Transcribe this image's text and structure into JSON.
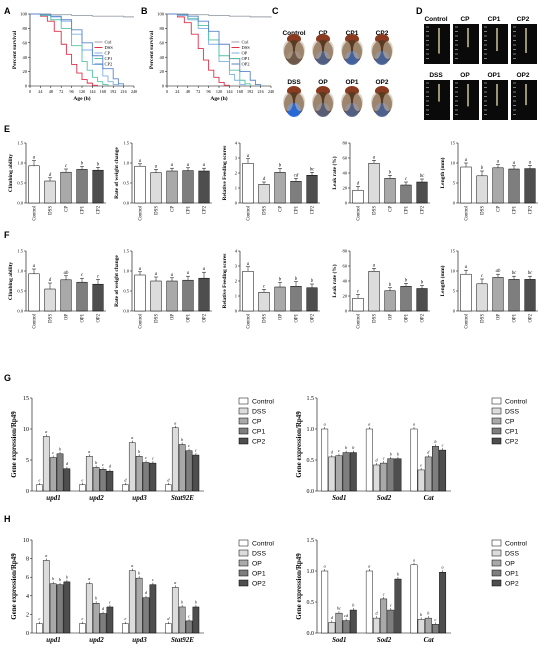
{
  "panel_letters": [
    "A",
    "B",
    "C",
    "D",
    "E",
    "F",
    "G",
    "H"
  ],
  "colors": {
    "ctrl": "#9aa0aa",
    "dss": "#e0304a",
    "s1": "#7fb1e6",
    "s2": "#53c2a3",
    "s3": "#5a86c7",
    "bar_ctrl": "#ffffff",
    "bar_dss": "#dcdcdc",
    "bar_s1": "#a9a9a9",
    "bar_s2": "#7e7e7e",
    "bar_s3": "#4e4e4e"
  },
  "chart_data": [
    {
      "id": "A",
      "type": "line",
      "ylabel": "Percent survival",
      "xlabel": "Age (h)",
      "xlim": [
        0,
        240
      ],
      "ylim": [
        0,
        100
      ],
      "xticks": [
        "0",
        "24",
        "48",
        "72",
        "96",
        "120",
        "144",
        "168",
        "192",
        "216",
        "240"
      ],
      "yticks": [
        "0",
        "20",
        "40",
        "60",
        "80",
        "100"
      ],
      "legend": [
        "Ctrl",
        "DSS",
        "CP",
        "CP1",
        "CP2"
      ],
      "series": [
        {
          "name": "Ctrl",
          "x": [
            0,
            24,
            48,
            72,
            96,
            120,
            144,
            168,
            192,
            216,
            240
          ],
          "y": [
            100,
            100,
            99,
            99,
            98,
            98,
            97,
            97,
            97,
            96,
            96
          ]
        },
        {
          "name": "DSS",
          "x": [
            0,
            24,
            40,
            56,
            72,
            84,
            96,
            108,
            120,
            132,
            144,
            156
          ],
          "y": [
            100,
            97,
            90,
            76,
            58,
            44,
            30,
            18,
            9,
            4,
            1,
            0
          ]
        },
        {
          "name": "CP",
          "x": [
            0,
            24,
            48,
            72,
            96,
            120,
            144,
            168,
            180,
            192,
            204
          ],
          "y": [
            100,
            99,
            96,
            90,
            72,
            50,
            30,
            14,
            6,
            2,
            0
          ]
        },
        {
          "name": "CP1",
          "x": [
            0,
            24,
            48,
            72,
            96,
            120,
            132,
            144,
            156,
            168,
            180
          ],
          "y": [
            100,
            98,
            92,
            80,
            56,
            34,
            22,
            12,
            6,
            2,
            0
          ]
        },
        {
          "name": "CP2",
          "x": [
            0,
            24,
            48,
            72,
            96,
            120,
            144,
            168,
            192,
            204,
            216
          ],
          "y": [
            100,
            99,
            97,
            92,
            78,
            60,
            42,
            24,
            10,
            3,
            0
          ]
        }
      ]
    },
    {
      "id": "B",
      "type": "line",
      "ylabel": "Percent survival",
      "xlabel": "Age (h)",
      "xlim": [
        0,
        240
      ],
      "ylim": [
        0,
        100
      ],
      "xticks": [
        "0",
        "24",
        "48",
        "72",
        "96",
        "120",
        "144",
        "168",
        "192",
        "216",
        "240"
      ],
      "yticks": [
        "0",
        "20",
        "40",
        "60",
        "80",
        "100"
      ],
      "legend": [
        "Ctrl",
        "DSS",
        "OP",
        "OP1",
        "OP2"
      ],
      "series": [
        {
          "name": "Ctrl",
          "x": [
            0,
            24,
            48,
            72,
            96,
            120,
            144,
            168,
            192,
            216,
            240
          ],
          "y": [
            100,
            100,
            99,
            99,
            98,
            98,
            97,
            97,
            96,
            96,
            95
          ]
        },
        {
          "name": "DSS",
          "x": [
            0,
            24,
            40,
            56,
            72,
            84,
            96,
            108,
            120,
            132,
            144
          ],
          "y": [
            100,
            96,
            88,
            72,
            52,
            36,
            22,
            12,
            5,
            1,
            0
          ]
        },
        {
          "name": "OP",
          "x": [
            0,
            24,
            48,
            72,
            96,
            120,
            144,
            156,
            168,
            180
          ],
          "y": [
            100,
            98,
            92,
            80,
            58,
            34,
            16,
            8,
            2,
            0
          ]
        },
        {
          "name": "OP1",
          "x": [
            0,
            24,
            48,
            72,
            96,
            120,
            144,
            168,
            180,
            192
          ],
          "y": [
            100,
            99,
            94,
            84,
            64,
            42,
            22,
            8,
            3,
            0
          ]
        },
        {
          "name": "OP2",
          "x": [
            0,
            24,
            48,
            72,
            96,
            120,
            144,
            168,
            192,
            204,
            216
          ],
          "y": [
            100,
            99,
            97,
            90,
            76,
            58,
            38,
            20,
            8,
            2,
            0
          ]
        }
      ]
    },
    {
      "id": "E1",
      "type": "bar",
      "ylabel": "Climbing ability",
      "categories": [
        "Control",
        "DSS",
        "CP",
        "CP1",
        "CP2"
      ],
      "values": [
        0.93,
        0.55,
        0.77,
        0.84,
        0.82
      ],
      "errors": [
        0.13,
        0.08,
        0.08,
        0.07,
        0.07
      ],
      "letters": [
        "a",
        "d",
        "c",
        "b",
        "b"
      ],
      "ylim": [
        0,
        1.5
      ],
      "yticks": [
        "0.0",
        "0.5",
        "1.0",
        "1.5"
      ]
    },
    {
      "id": "E2",
      "type": "bar",
      "ylabel": "Rate of weight change",
      "categories": [
        "Control",
        "DSS",
        "CP",
        "CP1",
        "CP2"
      ],
      "values": [
        0.92,
        0.76,
        0.8,
        0.81,
        0.8
      ],
      "errors": [
        0.06,
        0.08,
        0.07,
        0.07,
        0.07
      ],
      "letters": [
        "a",
        "a",
        "a",
        "a",
        "a"
      ],
      "ylim": [
        0,
        1.5
      ],
      "yticks": [
        "0.0",
        "0.5",
        "1.0",
        "1.5"
      ]
    },
    {
      "id": "E3",
      "type": "bar",
      "ylabel": "Relative Feeding scores",
      "categories": [
        "Control",
        "DSS",
        "CP",
        "CP1",
        "CP2"
      ],
      "values": [
        2.65,
        1.25,
        2.05,
        1.45,
        1.85
      ],
      "errors": [
        0.3,
        0.15,
        0.25,
        0.2,
        0.2
      ],
      "letters": [
        "a",
        "d",
        "b",
        "cd",
        "bc"
      ],
      "ylim": [
        0,
        4
      ],
      "yticks": [
        "0",
        "1",
        "2",
        "3",
        "4"
      ]
    },
    {
      "id": "E4",
      "type": "bar",
      "ylabel": "Leak rate (%)",
      "categories": [
        "Control",
        "DSS",
        "CP",
        "CP1",
        "CP2"
      ],
      "values": [
        17,
        53,
        33,
        24,
        28
      ],
      "errors": [
        5,
        4,
        4,
        4,
        4
      ],
      "letters": [
        "d",
        "a",
        "b",
        "c",
        "bc"
      ],
      "ylim": [
        0,
        80
      ],
      "yticks": [
        "0",
        "20",
        "40",
        "60",
        "80"
      ]
    },
    {
      "id": "E5",
      "type": "bar",
      "ylabel": "Length (mm)",
      "categories": [
        "Control",
        "DSS",
        "CP",
        "CP1",
        "CP2"
      ],
      "values": [
        9.0,
        6.8,
        8.8,
        8.5,
        8.6
      ],
      "errors": [
        1.0,
        1.2,
        0.8,
        0.8,
        0.8
      ],
      "letters": [
        "a",
        "b",
        "a",
        "a",
        "a"
      ],
      "ylim": [
        0,
        15
      ],
      "yticks": [
        "0",
        "5",
        "10",
        "15"
      ]
    },
    {
      "id": "F1",
      "type": "bar",
      "ylabel": "Climbing ability",
      "categories": [
        "Control",
        "DSS",
        "OP",
        "OP1",
        "OP2"
      ],
      "values": [
        0.93,
        0.55,
        0.78,
        0.72,
        0.67
      ],
      "errors": [
        0.12,
        0.15,
        0.1,
        0.1,
        0.12
      ],
      "letters": [
        "a",
        "d",
        "ab",
        "c",
        "c"
      ],
      "ylim": [
        0,
        1.5
      ],
      "yticks": [
        "0.0",
        "0.5",
        "1.0",
        "1.5"
      ]
    },
    {
      "id": "F2",
      "type": "bar",
      "ylabel": "Rate of weight change",
      "categories": [
        "Control",
        "DSS",
        "OP",
        "OP1",
        "OP2"
      ],
      "values": [
        0.9,
        0.75,
        0.75,
        0.77,
        0.82
      ],
      "errors": [
        0.08,
        0.1,
        0.08,
        0.1,
        0.15
      ],
      "letters": [
        "a",
        "a",
        "a",
        "a",
        "a"
      ],
      "ylim": [
        0,
        1.5
      ],
      "yticks": [
        "0.0",
        "0.5",
        "1.0",
        "1.5"
      ]
    },
    {
      "id": "F3",
      "type": "bar",
      "ylabel": "Relative Feeding scores",
      "categories": [
        "Control",
        "DSS",
        "OP",
        "OP1",
        "OP2"
      ],
      "values": [
        2.65,
        1.25,
        1.6,
        1.65,
        1.55
      ],
      "errors": [
        0.3,
        0.2,
        0.3,
        0.3,
        0.25
      ],
      "letters": [
        "a",
        "c",
        "b",
        "b",
        "b"
      ],
      "ylim": [
        0,
        4
      ],
      "yticks": [
        "0",
        "1",
        "2",
        "3",
        "4"
      ]
    },
    {
      "id": "F4",
      "type": "bar",
      "ylabel": "Leak rate (%)",
      "categories": [
        "Control",
        "DSS",
        "OP",
        "OP1",
        "OP2"
      ],
      "values": [
        17,
        53,
        27,
        33,
        30
      ],
      "errors": [
        5,
        4,
        4,
        4,
        4
      ],
      "letters": [
        "c",
        "a",
        "b",
        "b",
        "b"
      ],
      "ylim": [
        0,
        80
      ],
      "yticks": [
        "0",
        "20",
        "40",
        "60",
        "80"
      ]
    },
    {
      "id": "F5",
      "type": "bar",
      "ylabel": "Length (mm)",
      "categories": [
        "Control",
        "DSS",
        "OP",
        "OP1",
        "OP2"
      ],
      "values": [
        9.2,
        6.8,
        8.4,
        7.9,
        7.9
      ],
      "errors": [
        1.0,
        1.2,
        0.8,
        0.8,
        0.8
      ],
      "letters": [
        "a",
        "c",
        "ab",
        "bc",
        "bc"
      ],
      "ylim": [
        0,
        15
      ],
      "yticks": [
        "0",
        "5",
        "10",
        "15"
      ]
    },
    {
      "id": "G1",
      "type": "grouped-bar",
      "ylabel": "Gene expression/Rp49",
      "categories": [
        "upd1",
        "upd2",
        "upd3",
        "Stat92E"
      ],
      "ylim": [
        0,
        15
      ],
      "yticks": [
        "0",
        "5",
        "10",
        "15"
      ],
      "series": [
        {
          "name": "Control",
          "values": [
            1.0,
            1.0,
            1.0,
            1.0
          ],
          "letters": [
            "e",
            "e",
            "d",
            "d"
          ]
        },
        {
          "name": "DSS",
          "values": [
            8.8,
            5.6,
            7.8,
            10.2
          ],
          "letters": [
            "a",
            "a",
            "a",
            "a"
          ]
        },
        {
          "name": "CP",
          "values": [
            5.4,
            3.8,
            5.6,
            7.5
          ],
          "letters": [
            "c",
            "b",
            "b",
            "b"
          ]
        },
        {
          "name": "CP1",
          "values": [
            6.0,
            3.5,
            4.6,
            6.5
          ],
          "letters": [
            "b",
            "c",
            "c",
            "c"
          ]
        },
        {
          "name": "CP2",
          "values": [
            3.6,
            3.2,
            4.5,
            5.8
          ],
          "letters": [
            "d",
            "d",
            "c",
            "c"
          ]
        }
      ]
    },
    {
      "id": "G2",
      "type": "grouped-bar",
      "ylabel": "Gene expression/Rp49",
      "categories": [
        "Sod1",
        "Sod2",
        "Cat"
      ],
      "ylim": [
        0,
        1.5
      ],
      "yticks": [
        "0.0",
        "0.5",
        "1.0",
        "1.5"
      ],
      "series": [
        {
          "name": "Control",
          "values": [
            1.0,
            1.0,
            1.0
          ],
          "letters": [
            "a",
            "a",
            "a"
          ]
        },
        {
          "name": "DSS",
          "values": [
            0.55,
            0.42,
            0.34
          ],
          "letters": [
            "d",
            "d",
            "e"
          ]
        },
        {
          "name": "CP",
          "values": [
            0.57,
            0.45,
            0.55
          ],
          "letters": [
            "c",
            "c",
            "d"
          ]
        },
        {
          "name": "CP1",
          "values": [
            0.62,
            0.52,
            0.72
          ],
          "letters": [
            "b",
            "b",
            "b"
          ]
        },
        {
          "name": "CP2",
          "values": [
            0.62,
            0.52,
            0.66
          ],
          "letters": [
            "b",
            "b",
            "c"
          ]
        }
      ]
    },
    {
      "id": "H1",
      "type": "grouped-bar",
      "ylabel": "Gene expression/Rp49",
      "categories": [
        "upd1",
        "upd2",
        "upd3",
        "Stat92E"
      ],
      "ylim": [
        0,
        10
      ],
      "yticks": [
        "0",
        "2",
        "4",
        "6",
        "8",
        "10"
      ],
      "series": [
        {
          "name": "Control",
          "values": [
            1.0,
            1.0,
            1.0,
            1.0
          ],
          "letters": [
            "c",
            "e",
            "e",
            "d"
          ]
        },
        {
          "name": "DSS",
          "values": [
            7.8,
            5.3,
            6.7,
            4.9
          ],
          "letters": [
            "a",
            "a",
            "a",
            "a"
          ]
        },
        {
          "name": "OP",
          "values": [
            5.3,
            3.2,
            5.9,
            2.8
          ],
          "letters": [
            "b",
            "b",
            "b",
            "b"
          ]
        },
        {
          "name": "OP1",
          "values": [
            5.2,
            2.1,
            3.8,
            1.3
          ],
          "letters": [
            "b",
            "d",
            "d",
            "c"
          ]
        },
        {
          "name": "OP2",
          "values": [
            5.5,
            2.8,
            5.2,
            2.8
          ],
          "letters": [
            "b",
            "c",
            "c",
            "b"
          ]
        }
      ]
    },
    {
      "id": "H2",
      "type": "grouped-bar",
      "ylabel": "Gene expression/Rp49",
      "categories": [
        "Sod1",
        "Sod2",
        "Cat"
      ],
      "ylim": [
        0,
        1.5
      ],
      "yticks": [
        "0.0",
        "0.5",
        "1.0",
        "1.5"
      ],
      "series": [
        {
          "name": "Control",
          "values": [
            1.0,
            1.0,
            1.1
          ],
          "letters": [
            "a",
            "a",
            "a"
          ]
        },
        {
          "name": "DSS",
          "values": [
            0.17,
            0.24,
            0.22
          ],
          "letters": [
            "d",
            "d",
            "b"
          ]
        },
        {
          "name": "OP",
          "values": [
            0.32,
            0.55,
            0.24
          ],
          "letters": [
            "bc",
            "c",
            "b"
          ]
        },
        {
          "name": "OP1",
          "values": [
            0.2,
            0.37,
            0.14
          ],
          "letters": [
            "cd",
            "c",
            "c"
          ]
        },
        {
          "name": "OP2",
          "values": [
            0.37,
            0.87,
            0.98
          ],
          "letters": [
            "b",
            "b",
            "a"
          ]
        }
      ]
    }
  ],
  "panel_c": {
    "top_labels": [
      "Control",
      "CP",
      "CP1",
      "CP2"
    ],
    "bottom_labels": [
      "DSS",
      "OP",
      "OP1",
      "OP2"
    ],
    "blue_levels_top": [
      0.1,
      0.45,
      0.6,
      0.55
    ],
    "blue_levels_bottom": [
      0.95,
      0.35,
      0.45,
      0.5
    ]
  },
  "panel_d": {
    "top_labels": [
      "Control",
      "CP",
      "CP1",
      "CP2"
    ],
    "bottom_labels": [
      "DSS",
      "OP",
      "OP1",
      "OP2"
    ],
    "gut_lengths_top": [
      0.8,
      0.6,
      0.72,
      0.78
    ],
    "gut_lengths_bottom": [
      0.55,
      0.7,
      0.68,
      0.66
    ]
  }
}
